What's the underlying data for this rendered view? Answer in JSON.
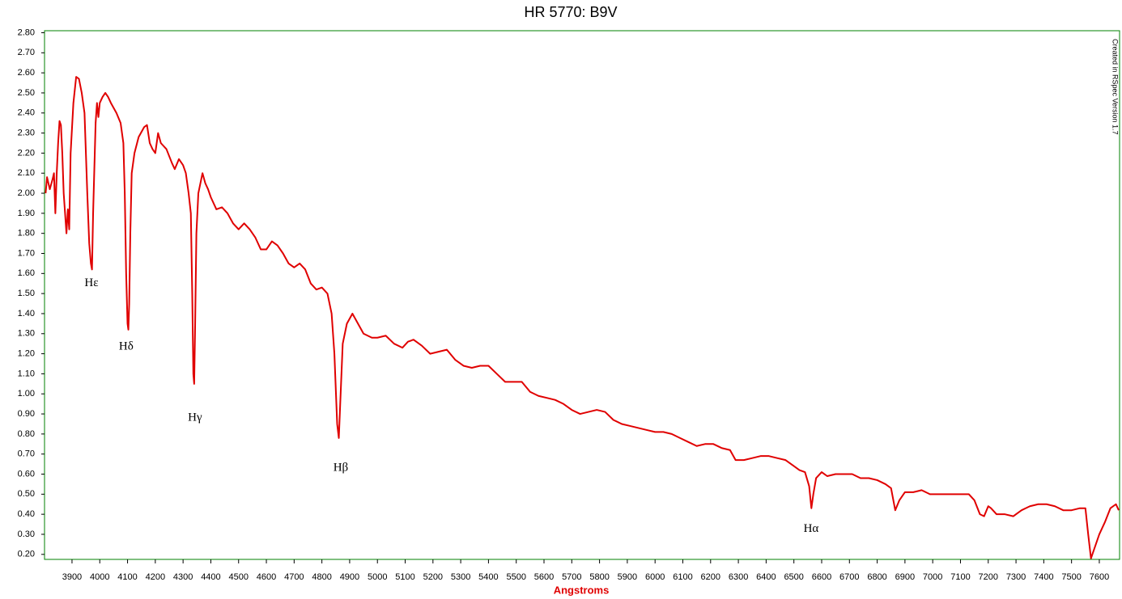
{
  "chart_data": {
    "type": "line",
    "title": "HR 5770: B9V",
    "x_label": "Angstroms",
    "credit": "Created in RSpec Version 1.7",
    "color": "#e00000",
    "frame_color": "#008000",
    "grid": false,
    "xlim": [
      3801,
      7673
    ],
    "ylim": [
      0.175,
      2.81
    ],
    "xticks": [
      3900,
      4000,
      4100,
      4200,
      4300,
      4400,
      4500,
      4600,
      4700,
      4800,
      4900,
      5000,
      5100,
      5200,
      5300,
      5400,
      5500,
      5600,
      5700,
      5800,
      5900,
      6000,
      6100,
      6200,
      6300,
      6400,
      6500,
      6600,
      6700,
      6800,
      6900,
      7000,
      7100,
      7200,
      7300,
      7400,
      7500,
      7600
    ],
    "yticks": [
      {
        "value": 0.2,
        "label": "0.20"
      },
      {
        "value": 0.3,
        "label": "0.30"
      },
      {
        "value": 0.4,
        "label": "0.40"
      },
      {
        "value": 0.5,
        "label": "0.50"
      },
      {
        "value": 0.6,
        "label": "0.60"
      },
      {
        "value": 0.7,
        "label": "0.70"
      },
      {
        "value": 0.8,
        "label": "0.80"
      },
      {
        "value": 0.9,
        "label": "0.90"
      },
      {
        "value": 1.0,
        "label": "1.00"
      },
      {
        "value": 1.1,
        "label": "1.10"
      },
      {
        "value": 1.2,
        "label": "1.20"
      },
      {
        "value": 1.3,
        "label": "1.30"
      },
      {
        "value": 1.4,
        "label": "1.40"
      },
      {
        "value": 1.5,
        "label": "1.50"
      },
      {
        "value": 1.6,
        "label": "1.60"
      },
      {
        "value": 1.7,
        "label": "1.70"
      },
      {
        "value": 1.8,
        "label": "1.80"
      },
      {
        "value": 1.9,
        "label": "1.90"
      },
      {
        "value": 2.0,
        "label": "2.00"
      },
      {
        "value": 2.1,
        "label": "2.10"
      },
      {
        "value": 2.2,
        "label": "2.20"
      },
      {
        "value": 2.3,
        "label": "2.30"
      },
      {
        "value": 2.4,
        "label": "2.40"
      },
      {
        "value": 2.5,
        "label": "2.50"
      },
      {
        "value": 2.6,
        "label": "2.60"
      },
      {
        "value": 2.7,
        "label": "2.70"
      },
      {
        "value": 2.8,
        "label": "2.80"
      }
    ],
    "x": [
      3805,
      3810,
      3820,
      3830,
      3835,
      3840,
      3845,
      3850,
      3855,
      3860,
      3865,
      3870,
      3875,
      3880,
      3885,
      3890,
      3895,
      3905,
      3915,
      3925,
      3935,
      3945,
      3955,
      3962,
      3968,
      3972,
      3976,
      3985,
      3990,
      3995,
      4000,
      4010,
      4020,
      4030,
      4040,
      4060,
      4075,
      4085,
      4090,
      4095,
      4100,
      4103,
      4106,
      4110,
      4115,
      4125,
      4140,
      4160,
      4170,
      4180,
      4190,
      4200,
      4210,
      4220,
      4240,
      4260,
      4270,
      4285,
      4300,
      4310,
      4320,
      4328,
      4333,
      4337,
      4340,
      4343,
      4348,
      4355,
      4370,
      4380,
      4390,
      4400,
      4420,
      4440,
      4460,
      4480,
      4500,
      4520,
      4540,
      4560,
      4580,
      4600,
      4620,
      4640,
      4660,
      4680,
      4700,
      4720,
      4740,
      4760,
      4780,
      4800,
      4820,
      4835,
      4845,
      4855,
      4861,
      4866,
      4875,
      4890,
      4910,
      4930,
      4950,
      4980,
      5000,
      5030,
      5060,
      5090,
      5110,
      5130,
      5160,
      5190,
      5220,
      5250,
      5280,
      5310,
      5340,
      5370,
      5400,
      5430,
      5460,
      5490,
      5520,
      5550,
      5580,
      5610,
      5640,
      5670,
      5700,
      5730,
      5760,
      5790,
      5820,
      5850,
      5880,
      5910,
      5940,
      5970,
      6000,
      6030,
      6060,
      6090,
      6120,
      6150,
      6180,
      6210,
      6240,
      6270,
      6290,
      6320,
      6350,
      6380,
      6410,
      6440,
      6470,
      6500,
      6520,
      6540,
      6555,
      6563,
      6570,
      6580,
      6600,
      6620,
      6650,
      6680,
      6710,
      6740,
      6770,
      6800,
      6830,
      6850,
      6865,
      6880,
      6900,
      6930,
      6960,
      6990,
      7020,
      7060,
      7100,
      7130,
      7150,
      7170,
      7185,
      7200,
      7210,
      7230,
      7260,
      7290,
      7320,
      7350,
      7380,
      7410,
      7440,
      7470,
      7500,
      7530,
      7550,
      7560,
      7570,
      7580,
      7600,
      7620,
      7640,
      7660,
      7670
    ],
    "values": [
      2.0,
      2.08,
      2.02,
      2.07,
      2.1,
      1.9,
      2.1,
      2.25,
      2.36,
      2.34,
      2.2,
      2.0,
      1.9,
      1.8,
      1.92,
      1.82,
      2.2,
      2.45,
      2.58,
      2.57,
      2.5,
      2.4,
      2.0,
      1.75,
      1.65,
      1.62,
      1.9,
      2.35,
      2.45,
      2.38,
      2.45,
      2.48,
      2.5,
      2.48,
      2.45,
      2.4,
      2.35,
      2.25,
      2.0,
      1.6,
      1.35,
      1.32,
      1.45,
      1.8,
      2.1,
      2.2,
      2.28,
      2.33,
      2.34,
      2.25,
      2.22,
      2.2,
      2.3,
      2.25,
      2.22,
      2.15,
      2.12,
      2.17,
      2.14,
      2.1,
      2.0,
      1.9,
      1.5,
      1.1,
      1.05,
      1.3,
      1.8,
      2.0,
      2.1,
      2.05,
      2.02,
      1.98,
      1.92,
      1.93,
      1.9,
      1.85,
      1.82,
      1.85,
      1.82,
      1.78,
      1.72,
      1.72,
      1.76,
      1.74,
      1.7,
      1.65,
      1.63,
      1.65,
      1.62,
      1.55,
      1.52,
      1.53,
      1.5,
      1.4,
      1.2,
      0.85,
      0.78,
      0.95,
      1.25,
      1.35,
      1.4,
      1.35,
      1.3,
      1.28,
      1.28,
      1.29,
      1.25,
      1.23,
      1.26,
      1.27,
      1.24,
      1.2,
      1.21,
      1.22,
      1.17,
      1.14,
      1.13,
      1.14,
      1.14,
      1.1,
      1.06,
      1.06,
      1.06,
      1.01,
      0.99,
      0.98,
      0.97,
      0.95,
      0.92,
      0.9,
      0.91,
      0.92,
      0.91,
      0.87,
      0.85,
      0.84,
      0.83,
      0.82,
      0.81,
      0.81,
      0.8,
      0.78,
      0.76,
      0.74,
      0.75,
      0.75,
      0.73,
      0.72,
      0.67,
      0.67,
      0.68,
      0.69,
      0.69,
      0.68,
      0.67,
      0.64,
      0.62,
      0.61,
      0.54,
      0.43,
      0.5,
      0.58,
      0.61,
      0.59,
      0.6,
      0.6,
      0.6,
      0.58,
      0.58,
      0.57,
      0.55,
      0.53,
      0.42,
      0.47,
      0.51,
      0.51,
      0.52,
      0.5,
      0.5,
      0.5,
      0.5,
      0.5,
      0.47,
      0.4,
      0.39,
      0.44,
      0.43,
      0.4,
      0.4,
      0.39,
      0.42,
      0.44,
      0.45,
      0.45,
      0.44,
      0.42,
      0.42,
      0.43,
      0.43,
      0.3,
      0.18,
      0.22,
      0.3,
      0.36,
      0.43,
      0.45,
      0.42
    ],
    "annotations": [
      {
        "text": "Hε",
        "x": 3970,
        "y": 1.55
      },
      {
        "text": "Hδ",
        "x": 4095,
        "y": 1.235
      },
      {
        "text": "Hγ",
        "x": 4343,
        "y": 0.88
      },
      {
        "text": "Hβ",
        "x": 4868,
        "y": 0.63
      },
      {
        "text": "Hα",
        "x": 6562,
        "y": 0.325
      }
    ]
  }
}
